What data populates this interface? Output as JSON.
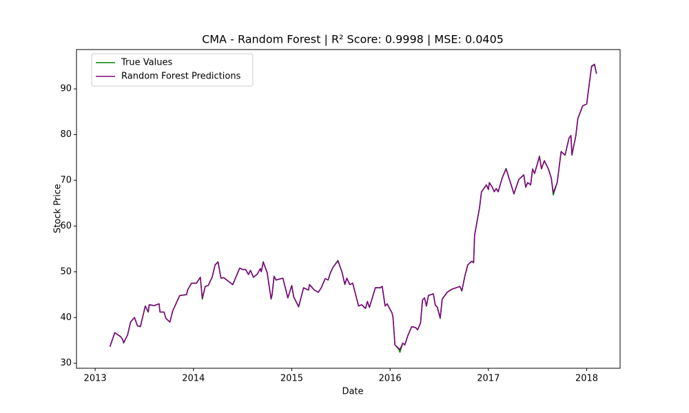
{
  "chart_data": {
    "type": "line",
    "title": "CMA - Random Forest | R² Score: 0.9998 | MSE: 0.0405",
    "x_label": "Date",
    "y_label": "Stock Price",
    "x": [
      2013.15,
      2013.2,
      2013.26,
      2013.28,
      2013.29,
      2013.33,
      2013.36,
      2013.4,
      2013.43,
      2013.46,
      2013.51,
      2013.54,
      2013.55,
      2013.6,
      2013.65,
      2013.66,
      2013.7,
      2013.72,
      2013.76,
      2013.79,
      2013.86,
      2013.93,
      2013.94,
      2013.98,
      2014.03,
      2014.07,
      2014.09,
      2014.12,
      2014.15,
      2014.19,
      2014.22,
      2014.25,
      2014.28,
      2014.31,
      2014.35,
      2014.4,
      2014.47,
      2014.5,
      2014.53,
      2014.56,
      2014.58,
      2014.61,
      2014.65,
      2014.68,
      2014.69,
      2014.71,
      2014.75,
      2014.79,
      2014.8,
      2014.82,
      2014.84,
      2014.91,
      2014.96,
      2015.0,
      2015.02,
      2015.07,
      2015.12,
      2015.17,
      2015.18,
      2015.23,
      2015.27,
      2015.3,
      2015.34,
      2015.37,
      2015.39,
      2015.42,
      2015.47,
      2015.51,
      2015.54,
      2015.56,
      2015.59,
      2015.62,
      2015.68,
      2015.71,
      2015.75,
      2015.77,
      2015.79,
      2015.85,
      2015.9,
      2015.92,
      2015.95,
      2015.97,
      2016.02,
      2016.03,
      2016.05,
      2016.09,
      2016.1,
      2016.13,
      2016.15,
      2016.18,
      2016.22,
      2016.26,
      2016.28,
      2016.31,
      2016.33,
      2016.35,
      2016.37,
      2016.39,
      2016.44,
      2016.46,
      2016.48,
      2016.51,
      2016.53,
      2016.58,
      2016.63,
      2016.67,
      2016.71,
      2016.73,
      2016.76,
      2016.79,
      2016.83,
      2016.85,
      2016.86,
      2016.91,
      2016.93,
      2016.98,
      2017.0,
      2017.01,
      2017.04,
      2017.06,
      2017.08,
      2017.1,
      2017.14,
      2017.18,
      2017.26,
      2017.31,
      2017.36,
      2017.38,
      2017.4,
      2017.43,
      2017.45,
      2017.47,
      2017.52,
      2017.54,
      2017.57,
      2017.61,
      2017.64,
      2017.66,
      2017.7,
      2017.74,
      2017.78,
      2017.82,
      2017.84,
      2017.85,
      2017.89,
      2017.91,
      2017.96,
      2018.0,
      2018.05,
      2018.08,
      2018.1
    ],
    "series": [
      {
        "name": "True Values",
        "color": "#008000",
        "values": [
          33.6,
          36.7,
          35.8,
          35.2,
          34.4,
          36.2,
          39,
          40,
          38.2,
          38,
          42.5,
          41.2,
          42.8,
          42.6,
          43,
          41.2,
          41.2,
          39.8,
          39,
          41.5,
          44.8,
          45,
          46,
          47.5,
          47.5,
          48.8,
          44,
          46.8,
          47,
          48.8,
          51.5,
          52.2,
          48.6,
          48.7,
          48,
          47.2,
          50.8,
          50.5,
          50.5,
          49.4,
          50.3,
          48.8,
          49.5,
          50.7,
          50,
          52.2,
          49.8,
          44,
          45,
          49,
          48.2,
          48.6,
          44.3,
          47,
          44.5,
          42.3,
          46.5,
          46,
          47.2,
          46,
          45.5,
          46.5,
          48.5,
          48.2,
          49.6,
          51,
          52.5,
          50,
          47.2,
          48.6,
          47.2,
          47.5,
          42.5,
          42.8,
          42,
          43.5,
          42.2,
          46.5,
          46.5,
          46.8,
          42.5,
          43,
          41,
          40,
          34,
          33,
          32.4,
          34.4,
          34,
          36,
          38,
          37.8,
          37.3,
          38.8,
          43.8,
          44.3,
          42.5,
          44.8,
          45.2,
          42.7,
          42.3,
          39.8,
          44,
          45.5,
          46.2,
          46.5,
          46.8,
          45.8,
          49,
          51.5,
          52.3,
          52,
          58,
          64,
          67.5,
          69,
          68,
          69.5,
          68.5,
          67.5,
          68.2,
          67.5,
          70.5,
          72.6,
          67,
          70.2,
          71.2,
          68.5,
          69.5,
          69,
          72.5,
          71.5,
          75.3,
          72.5,
          74.3,
          72.5,
          70.5,
          66.8,
          69.5,
          76.3,
          75.5,
          79.2,
          79.8,
          75.5,
          79.8,
          83.5,
          86.3,
          86.7,
          95,
          95.4,
          93.3
        ]
      },
      {
        "name": "Random Forest Predictions",
        "color": "#800080",
        "values": [
          33.6,
          36.7,
          35.8,
          35.2,
          34.5,
          36.2,
          39,
          40,
          38.2,
          38,
          42.5,
          41.2,
          42.8,
          42.6,
          43,
          41.2,
          41.2,
          39.8,
          39,
          41.5,
          44.8,
          45,
          46,
          47.5,
          47.5,
          48.8,
          44.2,
          46.8,
          47,
          48.8,
          51.5,
          52.1,
          48.6,
          48.7,
          48,
          47.2,
          50.8,
          50.5,
          50.5,
          49.4,
          50.3,
          48.8,
          49.5,
          50.7,
          50,
          52.1,
          49.8,
          44.1,
          45,
          49,
          48.2,
          48.6,
          44.3,
          47,
          44.5,
          42.4,
          46.5,
          46,
          47.2,
          46,
          45.5,
          46.5,
          48.5,
          48.2,
          49.6,
          51,
          52.4,
          50,
          47.3,
          48.6,
          47.2,
          47.5,
          42.5,
          42.8,
          42,
          43.5,
          42.2,
          46.5,
          46.5,
          46.8,
          42.5,
          43,
          41,
          40,
          34,
          33.2,
          33,
          34.4,
          34,
          36,
          38,
          37.8,
          37.3,
          38.8,
          43.8,
          44.3,
          42.5,
          44.8,
          45.2,
          42.7,
          42.3,
          39.9,
          44,
          45.5,
          46.2,
          46.5,
          46.8,
          45.8,
          49,
          51.5,
          52.3,
          52,
          58,
          64,
          67.5,
          69,
          68,
          69.5,
          68.5,
          67.5,
          68.2,
          67.5,
          70.5,
          72.5,
          67.1,
          70.2,
          71.2,
          68.5,
          69.5,
          69,
          72.5,
          71.5,
          75.2,
          72.5,
          74.3,
          72.5,
          70.5,
          67.3,
          69.5,
          76.3,
          75.5,
          79.2,
          79.8,
          75.6,
          79.8,
          83.5,
          86.3,
          86.7,
          94.9,
          95.3,
          93.3
        ]
      }
    ],
    "xlim": [
      2012.81,
      2018.34
    ],
    "ylim": [
      28.9,
      98.6
    ],
    "xticks": [
      2013,
      2014,
      2015,
      2016,
      2017,
      2018
    ],
    "yticks": [
      30,
      40,
      50,
      60,
      70,
      80,
      90
    ],
    "legend": "upper left"
  }
}
